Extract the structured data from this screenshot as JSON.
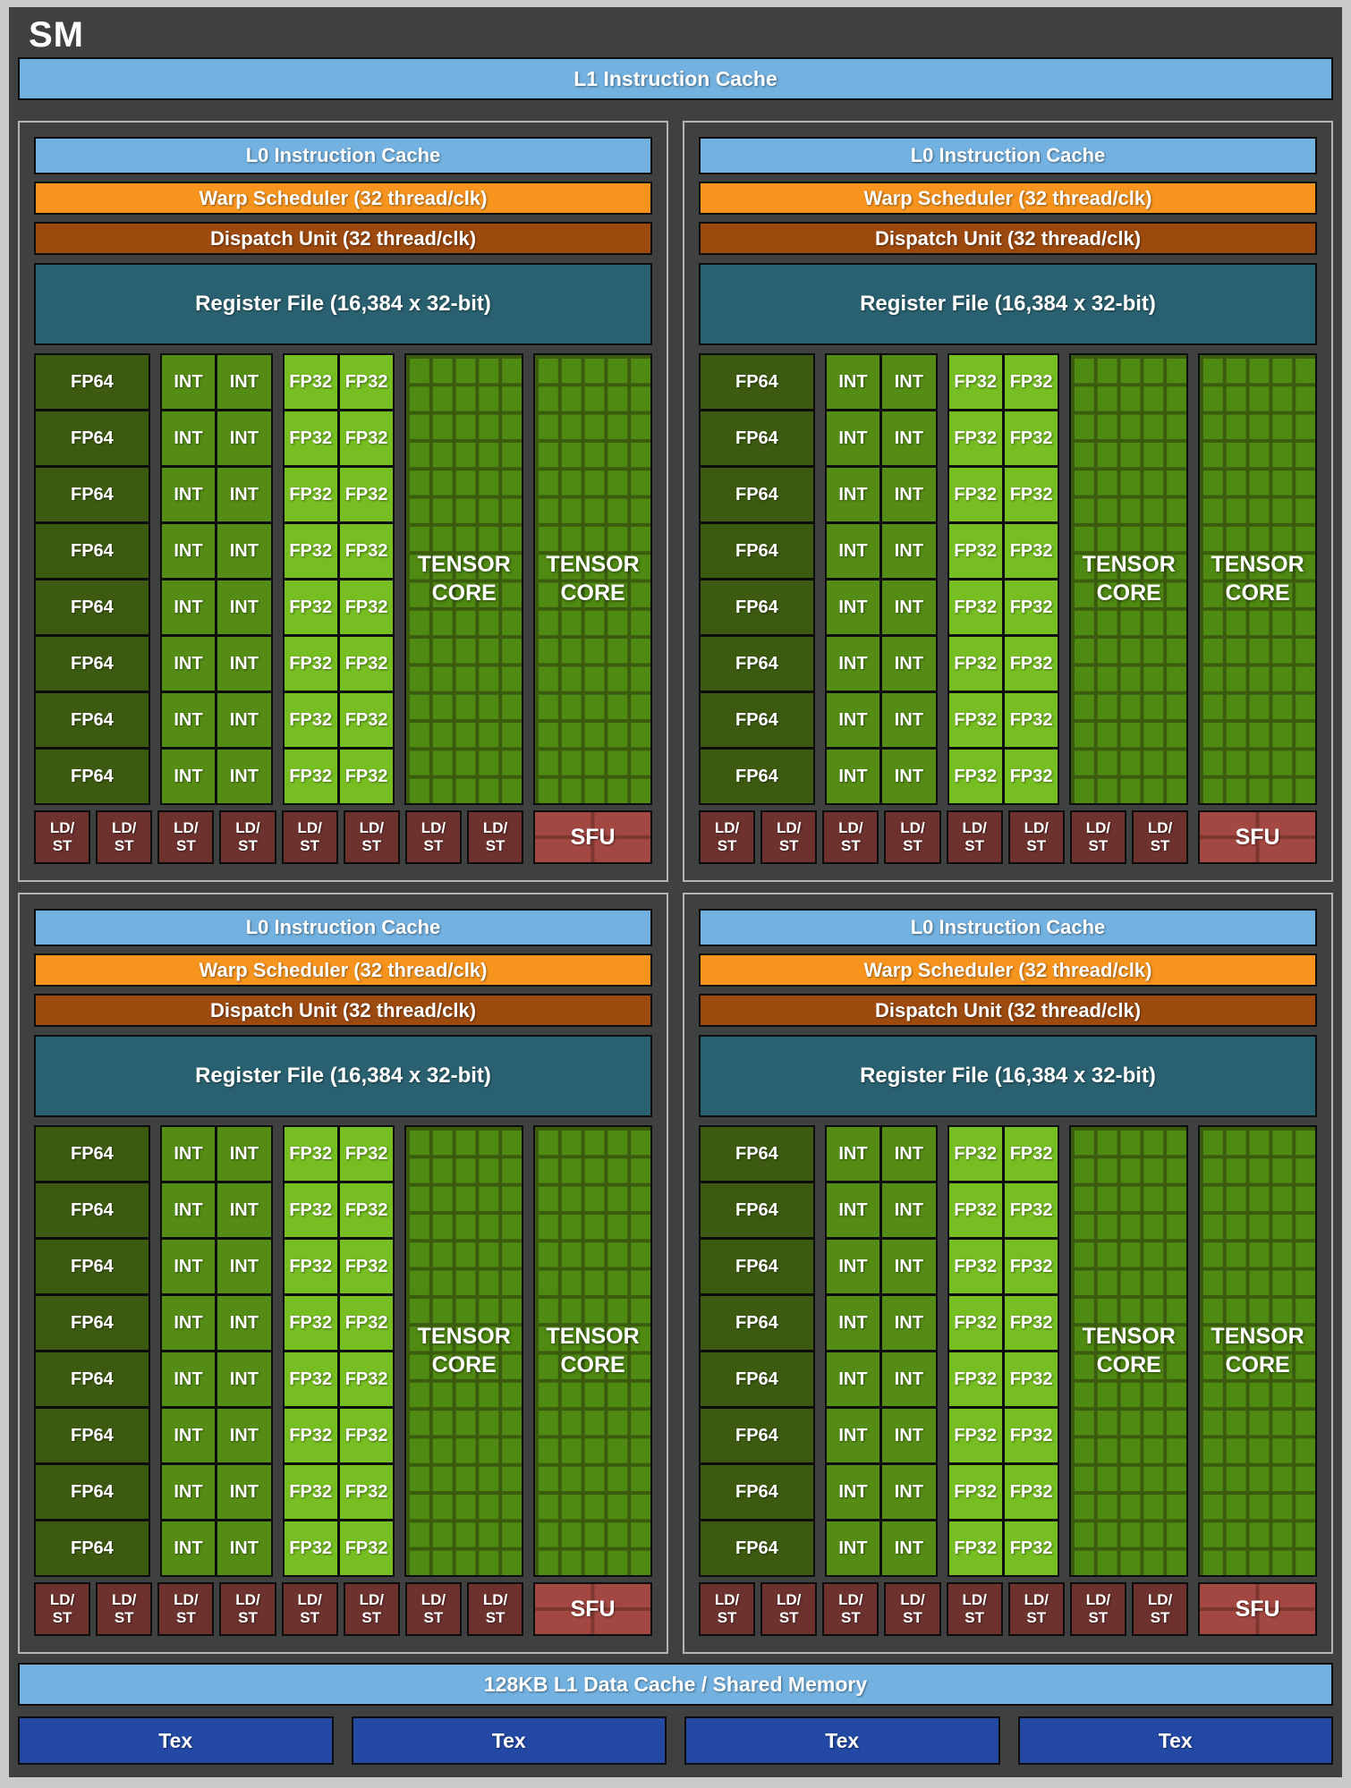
{
  "title": "SM",
  "l1_instruction_cache": "L1 Instruction Cache",
  "partition_count": 4,
  "partition": {
    "l0_instruction_cache": "L0 Instruction Cache",
    "warp_scheduler": "Warp Scheduler (32 thread/clk)",
    "dispatch_unit": "Dispatch Unit (32 thread/clk)",
    "register_file": "Register File (16,384 x 32-bit)",
    "core_rows": 8,
    "fp64_label": "FP64",
    "int_label": "INT",
    "int_columns": 2,
    "fp32_label": "FP32",
    "fp32_columns": 2,
    "tensor_core_count": 2,
    "tensor_core_line1": "TENSOR",
    "tensor_core_line2": "CORE",
    "ldst_count": 8,
    "ldst_line1": "LD/",
    "ldst_line2": "ST",
    "sfu_label": "SFU"
  },
  "shared_memory": "128KB L1 Data Cache / Shared Memory",
  "tex_count": 4,
  "tex_label": "Tex",
  "colors": {
    "panel_background": "#3F4040",
    "outer_frame": "#C9CACB",
    "instruction_cache_blue": "#73B1E0",
    "warp_scheduler_orange": "#F7941E",
    "dispatch_unit_brown": "#9D4A0E",
    "register_file_teal": "#2A6170",
    "fp64_green": "#3D5B10",
    "int_green": "#548C15",
    "fp32_green": "#77BE23",
    "tensor_core_green": "#4F8A12",
    "ldst_maroon": "#6D322E",
    "sfu_red": "#A34742",
    "tex_blue": "#2349A4"
  }
}
